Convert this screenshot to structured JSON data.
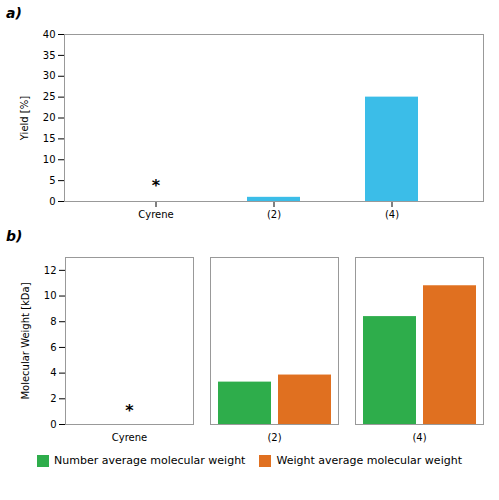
{
  "chart_data": [
    {
      "type": "bar",
      "title": "a)",
      "categories": [
        "Cyrene",
        "(2)",
        "(4)"
      ],
      "values": [
        0,
        1.0,
        25.0
      ],
      "color": "#3BBDE8",
      "ylabel": "Yield [%]",
      "ylim": [
        0,
        40
      ],
      "yticks": [
        0,
        5,
        10,
        15,
        20,
        25,
        30,
        35,
        40
      ],
      "annotations": [
        {
          "text": "*",
          "x": "Cyrene",
          "y": 2.5
        }
      ]
    },
    {
      "type": "bar",
      "title": "b)",
      "categories": [
        "Cyrene",
        "(2)",
        "(4)"
      ],
      "series": [
        {
          "name": "Number average molecular weight",
          "color": "#2EAD4B",
          "values": [
            0,
            3.3,
            8.4
          ]
        },
        {
          "name": "Weight average molecular weight",
          "color": "#E07020",
          "values": [
            0,
            3.85,
            10.8
          ]
        }
      ],
      "ylabel": "Molecular Weight [kDa]",
      "ylim": [
        0,
        13
      ],
      "yticks": [
        0,
        2,
        4,
        6,
        8,
        10,
        12
      ],
      "legend": "bottom",
      "annotations": [
        {
          "text": "*",
          "x": "Cyrene",
          "y": 0.7
        }
      ]
    }
  ]
}
